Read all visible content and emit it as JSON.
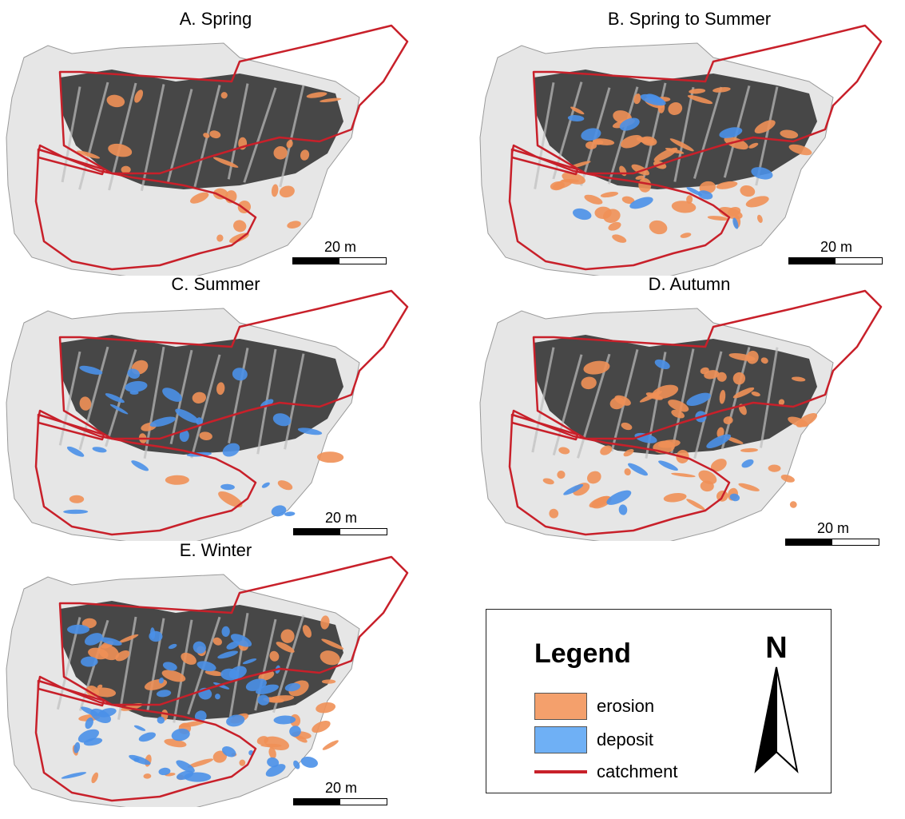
{
  "panels": [
    {
      "title": "A. Spring",
      "scale_label": "20 m",
      "erosion_level": "medium",
      "deposit_level": "none"
    },
    {
      "title": "B. Spring to Summer",
      "scale_label": "20 m",
      "erosion_level": "high",
      "deposit_level": "low"
    },
    {
      "title": "C. Summer",
      "scale_label": "20 m",
      "erosion_level": "low",
      "deposit_level": "medium"
    },
    {
      "title": "D. Autumn",
      "scale_label": "20 m",
      "erosion_level": "high",
      "deposit_level": "low"
    },
    {
      "title": "E. Winter",
      "scale_label": "20 m",
      "erosion_level": "high",
      "deposit_level": "high"
    }
  ],
  "legend": {
    "title": "Legend",
    "items": [
      {
        "label": "erosion",
        "color": "#f4a06c"
      },
      {
        "label": "deposit",
        "color": "#6fb0f5"
      },
      {
        "label": "catchment",
        "color": "#c8202a"
      }
    ]
  },
  "north_arrow": {
    "label": "N"
  },
  "colors": {
    "catchment": "#c8202a",
    "erosion": "#ef9057",
    "deposit": "#4a90e8",
    "hillshade_dark": "#2a2a2a",
    "hillshade_light": "#e6e6e6"
  }
}
